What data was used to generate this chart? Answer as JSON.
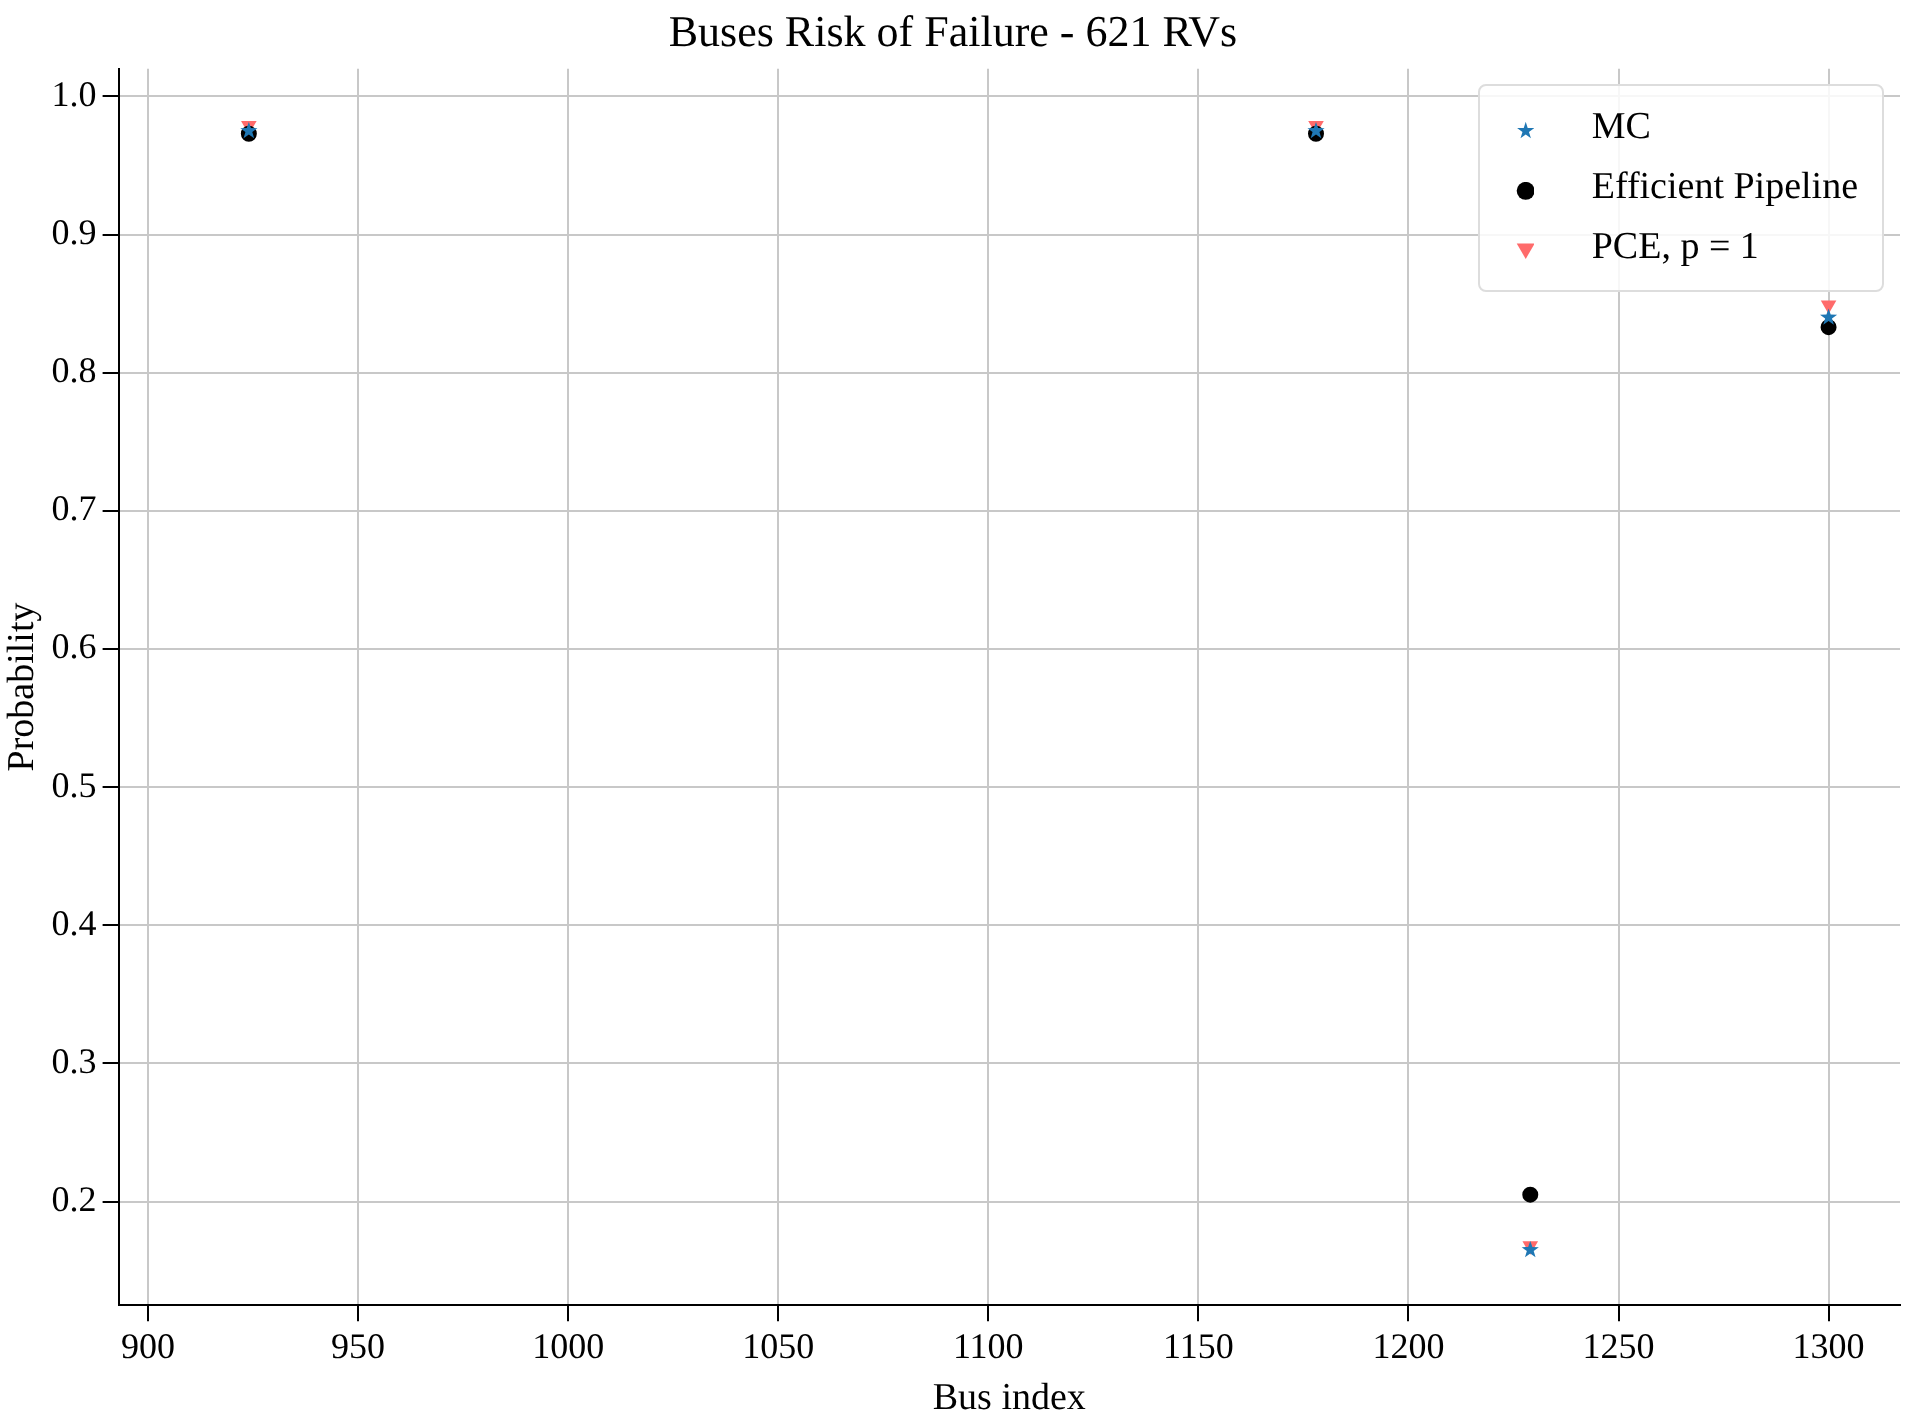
{
  "chart_data": {
    "type": "scatter",
    "title": "Buses Risk of Failure - 621 RVs",
    "xlabel": "Bus index",
    "ylabel": "Probability",
    "x": [
      924,
      1178,
      1229,
      1300
    ],
    "series": [
      {
        "name": "MC",
        "color": "#1f77b4",
        "marker": "star",
        "values": [
          0.975,
          0.975,
          0.165,
          0.84
        ]
      },
      {
        "name": "Efficient Pipeline",
        "color": "#000000",
        "marker": "circle",
        "values": [
          0.973,
          0.973,
          0.205,
          0.833
        ]
      },
      {
        "name": "PCE, p = 1",
        "color": "#ff6b6b",
        "marker": "triangle",
        "values": [
          0.979,
          0.979,
          0.168,
          0.849
        ]
      }
    ],
    "xlim": [
      893,
      1317
    ],
    "xticks": [
      900,
      950,
      1000,
      1050,
      1100,
      1150,
      1200,
      1250,
      1300
    ],
    "ylim": [
      0.125,
      1.02
    ],
    "yticks": [
      0.2,
      0.3,
      0.4,
      0.5,
      0.6,
      0.7,
      0.8,
      0.9,
      {
        "value": 1,
        "label": "1.0"
      }
    ],
    "grid": true,
    "legend": "top right"
  }
}
